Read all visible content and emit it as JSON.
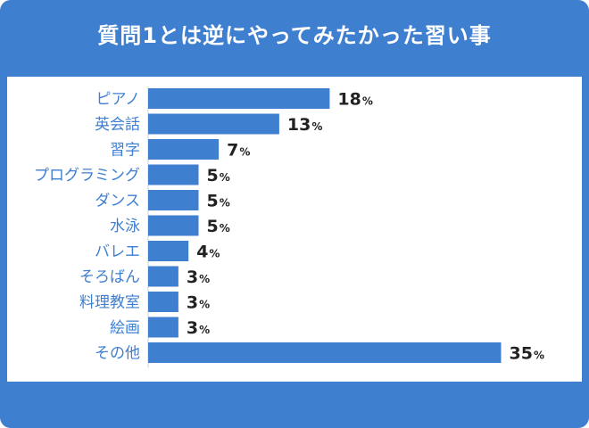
{
  "chart_data": {
    "type": "bar",
    "orientation": "horizontal",
    "title": "質問1とは逆にやってみたかった習い事",
    "categories": [
      "ピアノ",
      "英会話",
      "習字",
      "プログラミング",
      "ダンス",
      "水泳",
      "バレエ",
      "そろばん",
      "料理教室",
      "絵画",
      "その他"
    ],
    "values": [
      18,
      13,
      7,
      5,
      5,
      5,
      4,
      3,
      3,
      3,
      35
    ],
    "unit": "%",
    "xlim": [
      0,
      35
    ],
    "grid": false,
    "legend": "none",
    "colors": {
      "frame": "#3f7fd0",
      "bar": "#3f7fd0",
      "label": "#3f7fd0",
      "value": "#222222"
    }
  }
}
